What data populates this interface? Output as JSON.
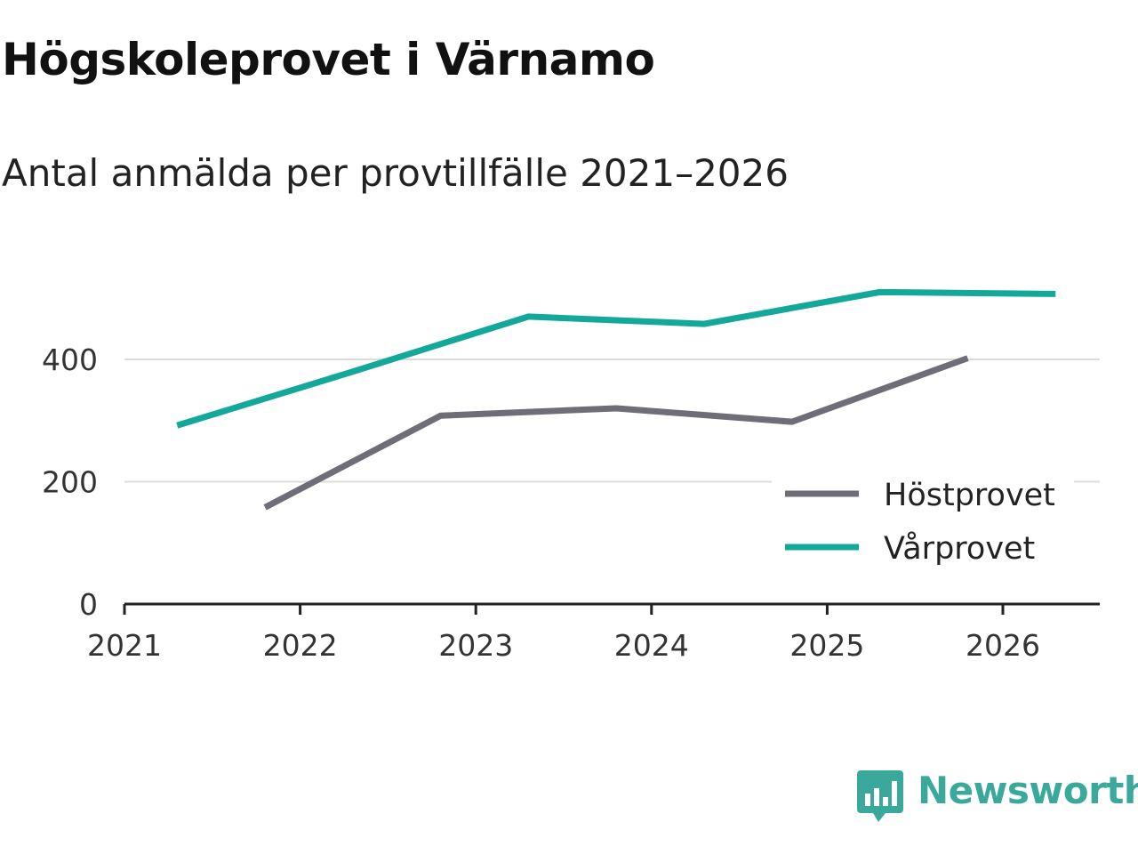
{
  "title": "Högskoleprovet i Värnamo",
  "subtitle": "Antal anmälda per provtillfälle 2021–2026",
  "logo": {
    "text": "Newsworthy",
    "icon": "bar-chart-speech-bubble-icon",
    "color": "#3aa99c"
  },
  "chart_data": {
    "type": "line",
    "title": "Högskoleprovet i Värnamo",
    "subtitle": "Antal anmälda per provtillfälle 2021–2026",
    "xlabel": "",
    "ylabel": "",
    "xlim": [
      2021,
      2026.55
    ],
    "ylim": [
      0,
      510
    ],
    "x_ticks": [
      "2021",
      "2022",
      "2023",
      "2024",
      "2025",
      "2026"
    ],
    "y_ticks": [
      "0",
      "200",
      "400"
    ],
    "y_tick_values": [
      0,
      200,
      400
    ],
    "grid": "horizontal",
    "legend_position": "bottom-right",
    "series": [
      {
        "name": "Höstprovet",
        "color": "#6f6e78",
        "x": [
          2021.8,
          2022.8,
          2023.8,
          2024.8,
          2025.8
        ],
        "values": [
          158,
          308,
          320,
          298,
          402
        ]
      },
      {
        "name": "Vårprovet",
        "color": "#13a89a",
        "x": [
          2021.3,
          2022.3,
          2023.3,
          2024.3,
          2025.3,
          2026.3
        ],
        "values": [
          292,
          380,
          470,
          458,
          510,
          507
        ]
      }
    ]
  }
}
